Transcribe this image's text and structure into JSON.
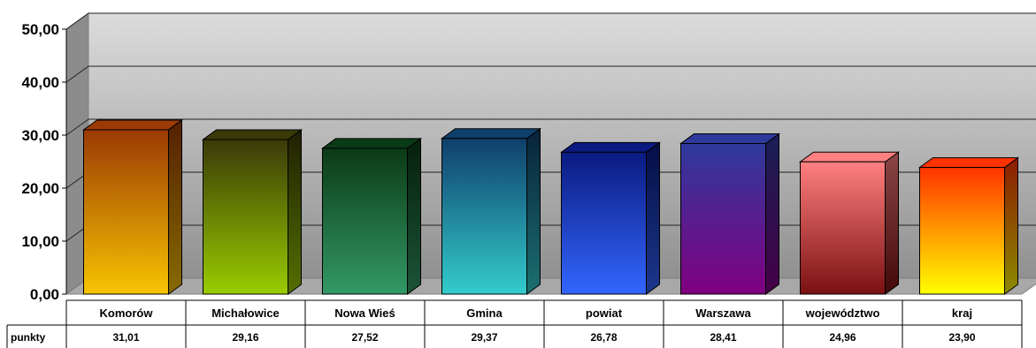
{
  "chart_data": {
    "type": "bar",
    "categories": [
      "Komorów",
      "Michałowice",
      "Nowa Wieś",
      "Gmina",
      "powiat",
      "Warszawa",
      "województwo",
      "kraj"
    ],
    "series": [
      {
        "name": "punkty",
        "values": [
          31.01,
          29.16,
          27.52,
          29.37,
          26.78,
          28.41,
          24.96,
          23.9
        ]
      }
    ],
    "value_labels": [
      "31,01",
      "29,16",
      "27,52",
      "29,37",
      "26,78",
      "28,41",
      "24,96",
      "23,90"
    ],
    "y_ticks": [
      "0,00",
      "10,00",
      "20,00",
      "30,00",
      "40,00",
      "50,00"
    ],
    "ylim": [
      0,
      50
    ],
    "y_step": 10,
    "title": "",
    "xlabel": "",
    "ylabel": "",
    "grid": true,
    "legend": "data-table",
    "bar_colors": [
      [
        "#9a3a04",
        "#f7c402"
      ],
      [
        "#3a3a08",
        "#99cc00"
      ],
      [
        "#0b3a16",
        "#339966"
      ],
      [
        "#0f3f6b",
        "#33cccc"
      ],
      [
        "#0a1a80",
        "#3366ff"
      ],
      [
        "#2e3a9c",
        "#800080"
      ],
      [
        "#ff8080",
        "#7a1010"
      ],
      [
        "#ff3300",
        "#ffff00"
      ]
    ],
    "wall_colors": [
      "#909090",
      "#dcdcdc"
    ],
    "floor_color": "#a8a8a8"
  }
}
